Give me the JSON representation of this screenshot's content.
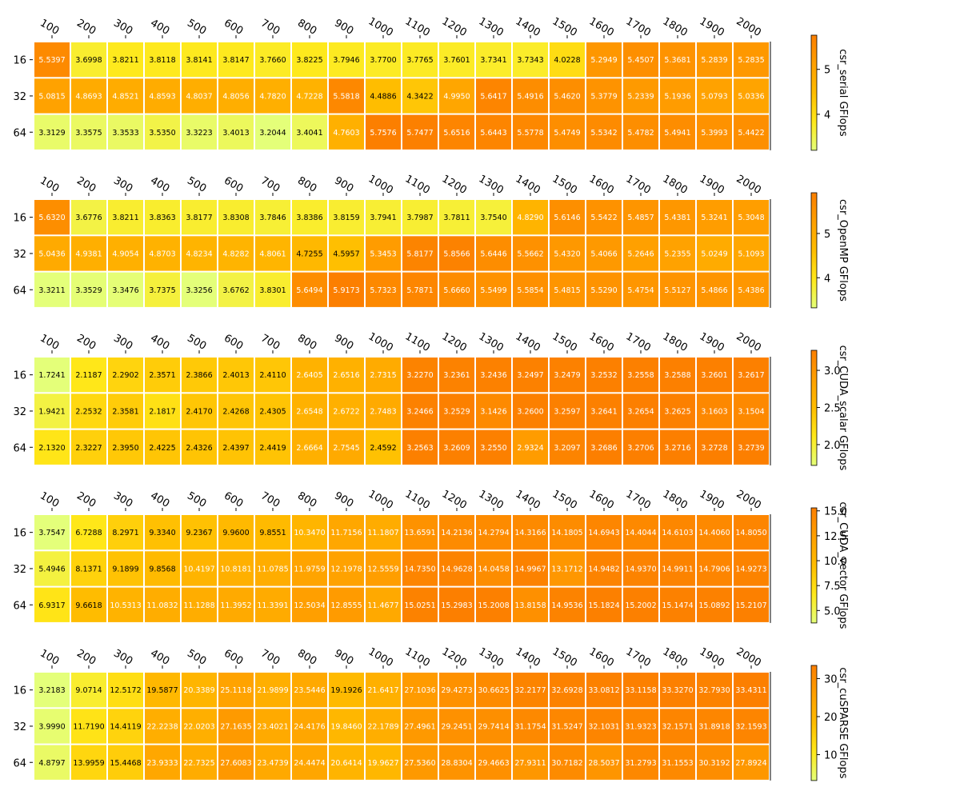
{
  "chart_data": [
    {
      "type": "heatmap",
      "colorbar_label": "csr_serial GFlops",
      "x": [
        "100",
        "200",
        "300",
        "400",
        "500",
        "600",
        "700",
        "800",
        "900",
        "1000",
        "1100",
        "1200",
        "1300",
        "1400",
        "1500",
        "1600",
        "1700",
        "1800",
        "1900",
        "2000"
      ],
      "y": [
        "16",
        "32",
        "64"
      ],
      "values": [
        [
          5.5397,
          3.6998,
          3.8211,
          3.8118,
          3.8141,
          3.8147,
          3.766,
          3.8225,
          3.7946,
          3.77,
          3.7765,
          3.7601,
          3.7341,
          3.7343,
          4.0228,
          5.2949,
          5.4507,
          5.3681,
          5.2839,
          5.2835
        ],
        [
          5.0815,
          4.8693,
          4.8521,
          4.8593,
          4.8037,
          4.8056,
          4.782,
          4.7228,
          5.5818,
          4.4886,
          4.3422,
          4.995,
          5.6417,
          5.4916,
          5.462,
          5.3779,
          5.2339,
          5.1936,
          5.0793,
          5.0336
        ],
        [
          3.3129,
          3.3575,
          3.3533,
          3.535,
          3.3223,
          3.4013,
          3.2044,
          3.4041,
          4.7603,
          5.7576,
          5.7477,
          5.6516,
          5.6443,
          5.5778,
          5.4749,
          5.5342,
          5.4782,
          5.4941,
          5.3993,
          5.4422
        ]
      ],
      "colorbar_ticks": [
        4,
        5
      ],
      "color_range": [
        3.2,
        5.76
      ],
      "colormap": "Wistia"
    },
    {
      "type": "heatmap",
      "colorbar_label": "csr_OpenMP GFlops",
      "x": [
        "100",
        "200",
        "300",
        "400",
        "500",
        "600",
        "700",
        "800",
        "900",
        "1000",
        "1100",
        "1200",
        "1300",
        "1400",
        "1500",
        "1600",
        "1700",
        "1800",
        "1900",
        "2000"
      ],
      "y": [
        "16",
        "32",
        "64"
      ],
      "values": [
        [
          5.632,
          3.6776,
          3.8211,
          3.8363,
          3.8177,
          3.8308,
          3.7846,
          3.8386,
          3.8159,
          3.7941,
          3.7987,
          3.7811,
          3.754,
          4.829,
          5.6146,
          5.5422,
          5.4857,
          5.4381,
          5.3241,
          5.3048
        ],
        [
          5.0436,
          4.9381,
          4.9054,
          4.8703,
          4.8234,
          4.8282,
          4.8061,
          4.7255,
          4.5957,
          5.3453,
          5.8177,
          5.8566,
          5.6446,
          5.5662,
          5.432,
          5.4066,
          5.2646,
          5.2355,
          5.0249,
          5.1093
        ],
        [
          3.3211,
          3.3529,
          3.3476,
          3.7375,
          3.3256,
          3.6762,
          3.8301,
          5.6494,
          5.9173,
          5.7323,
          5.7871,
          5.666,
          5.5499,
          5.5854,
          5.4815,
          5.529,
          5.4754,
          5.5127,
          5.4866,
          5.4386
        ]
      ],
      "colorbar_ticks": [
        4,
        5
      ],
      "color_range": [
        3.32,
        5.92
      ],
      "colormap": "Wistia"
    },
    {
      "type": "heatmap",
      "colorbar_label": "csr_CUDA_scalar GFlops",
      "x": [
        "100",
        "200",
        "300",
        "400",
        "500",
        "600",
        "700",
        "800",
        "900",
        "1000",
        "1100",
        "1200",
        "1300",
        "1400",
        "1500",
        "1600",
        "1700",
        "1800",
        "1900",
        "2000"
      ],
      "y": [
        "16",
        "32",
        "64"
      ],
      "values": [
        [
          1.7241,
          2.1187,
          2.2902,
          2.3571,
          2.3866,
          2.4013,
          2.411,
          2.6405,
          2.6516,
          2.7315,
          3.227,
          3.2361,
          3.2436,
          3.2497,
          3.2479,
          3.2532,
          3.2558,
          3.2588,
          3.2601,
          3.2617
        ],
        [
          1.9421,
          2.2532,
          2.3581,
          2.1817,
          2.417,
          2.4268,
          2.4305,
          2.6548,
          2.6722,
          2.7483,
          3.2466,
          3.2529,
          3.1426,
          3.26,
          3.2597,
          3.2641,
          3.2654,
          3.2625,
          3.1603,
          3.1504
        ],
        [
          2.132,
          2.3227,
          2.395,
          2.4225,
          2.4326,
          2.4397,
          2.4419,
          2.6664,
          2.7545,
          2.4592,
          3.2563,
          3.2609,
          3.255,
          2.9324,
          3.2097,
          3.2686,
          3.2706,
          3.2716,
          3.2728,
          3.2739
        ]
      ],
      "colorbar_ticks": [
        2.0,
        2.5,
        3.0
      ],
      "colorbar_tick_labels": [
        "2.0",
        "2.5",
        "3.0"
      ],
      "color_range": [
        1.72,
        3.27
      ],
      "colormap": "Wistia"
    },
    {
      "type": "heatmap",
      "colorbar_label": "csr_CUDA_vector GFlops",
      "x": [
        "100",
        "200",
        "300",
        "400",
        "500",
        "600",
        "700",
        "800",
        "900",
        "1000",
        "1100",
        "1200",
        "1300",
        "1400",
        "1500",
        "1600",
        "1700",
        "1800",
        "1900",
        "2000"
      ],
      "y": [
        "16",
        "32",
        "64"
      ],
      "values": [
        [
          3.7547,
          6.7288,
          8.2971,
          9.334,
          9.2367,
          9.96,
          9.8551,
          10.347,
          11.7156,
          11.1807,
          13.6591,
          14.2136,
          14.2794,
          14.3166,
          14.1805,
          14.6943,
          14.4044,
          14.6103,
          14.406,
          14.805
        ],
        [
          5.4946,
          8.1371,
          9.1899,
          9.8568,
          10.4197,
          10.8181,
          11.0785,
          11.9759,
          12.1978,
          12.5559,
          14.735,
          14.9628,
          14.0458,
          14.9967,
          13.1712,
          14.9482,
          14.937,
          14.9911,
          14.7906,
          14.9273
        ],
        [
          6.9317,
          9.6618,
          10.5313,
          11.0832,
          11.1288,
          11.3952,
          11.3391,
          12.5034,
          12.8555,
          11.4677,
          15.0251,
          15.2983,
          15.2008,
          13.8158,
          14.9536,
          15.1824,
          15.2002,
          15.1474,
          15.0892,
          15.2107
        ]
      ],
      "colorbar_ticks": [
        5.0,
        7.5,
        10.0,
        12.5,
        15.0
      ],
      "colorbar_tick_labels": [
        "5.0",
        "7.5",
        "10.0",
        "12.5",
        "15.0"
      ],
      "color_range": [
        3.75,
        15.3
      ],
      "colormap": "Wistia"
    },
    {
      "type": "heatmap",
      "colorbar_label": "csr_cuSPARSE GFlops",
      "x": [
        "100",
        "200",
        "300",
        "400",
        "500",
        "600",
        "700",
        "800",
        "900",
        "1000",
        "1100",
        "1200",
        "1300",
        "1400",
        "1500",
        "1600",
        "1700",
        "1800",
        "1900",
        "2000"
      ],
      "y": [
        "16",
        "32",
        "64"
      ],
      "values": [
        [
          3.2183,
          9.0714,
          12.5172,
          19.5877,
          20.3389,
          25.1118,
          21.9899,
          23.5446,
          19.1926,
          21.6417,
          27.1036,
          29.4273,
          30.6625,
          32.2177,
          32.6928,
          33.0812,
          33.1158,
          33.327,
          32.793,
          33.4311
        ],
        [
          3.999,
          11.719,
          14.4119,
          22.2238,
          22.0203,
          27.1635,
          23.4021,
          24.4176,
          19.846,
          22.1789,
          27.4961,
          29.2451,
          29.7414,
          31.1754,
          31.5247,
          32.1031,
          31.9323,
          32.1571,
          31.8918,
          32.1593
        ],
        [
          4.8797,
          13.9959,
          15.4468,
          23.9333,
          22.7325,
          27.6083,
          23.4739,
          24.4474,
          20.6414,
          19.9627,
          27.536,
          28.8304,
          29.4663,
          27.9311,
          30.7182,
          28.5037,
          31.2793,
          31.1553,
          30.3192,
          27.8924
        ]
      ],
      "colorbar_ticks": [
        10,
        20,
        30
      ],
      "color_range": [
        3.2,
        33.45
      ],
      "colormap": "Wistia"
    }
  ]
}
